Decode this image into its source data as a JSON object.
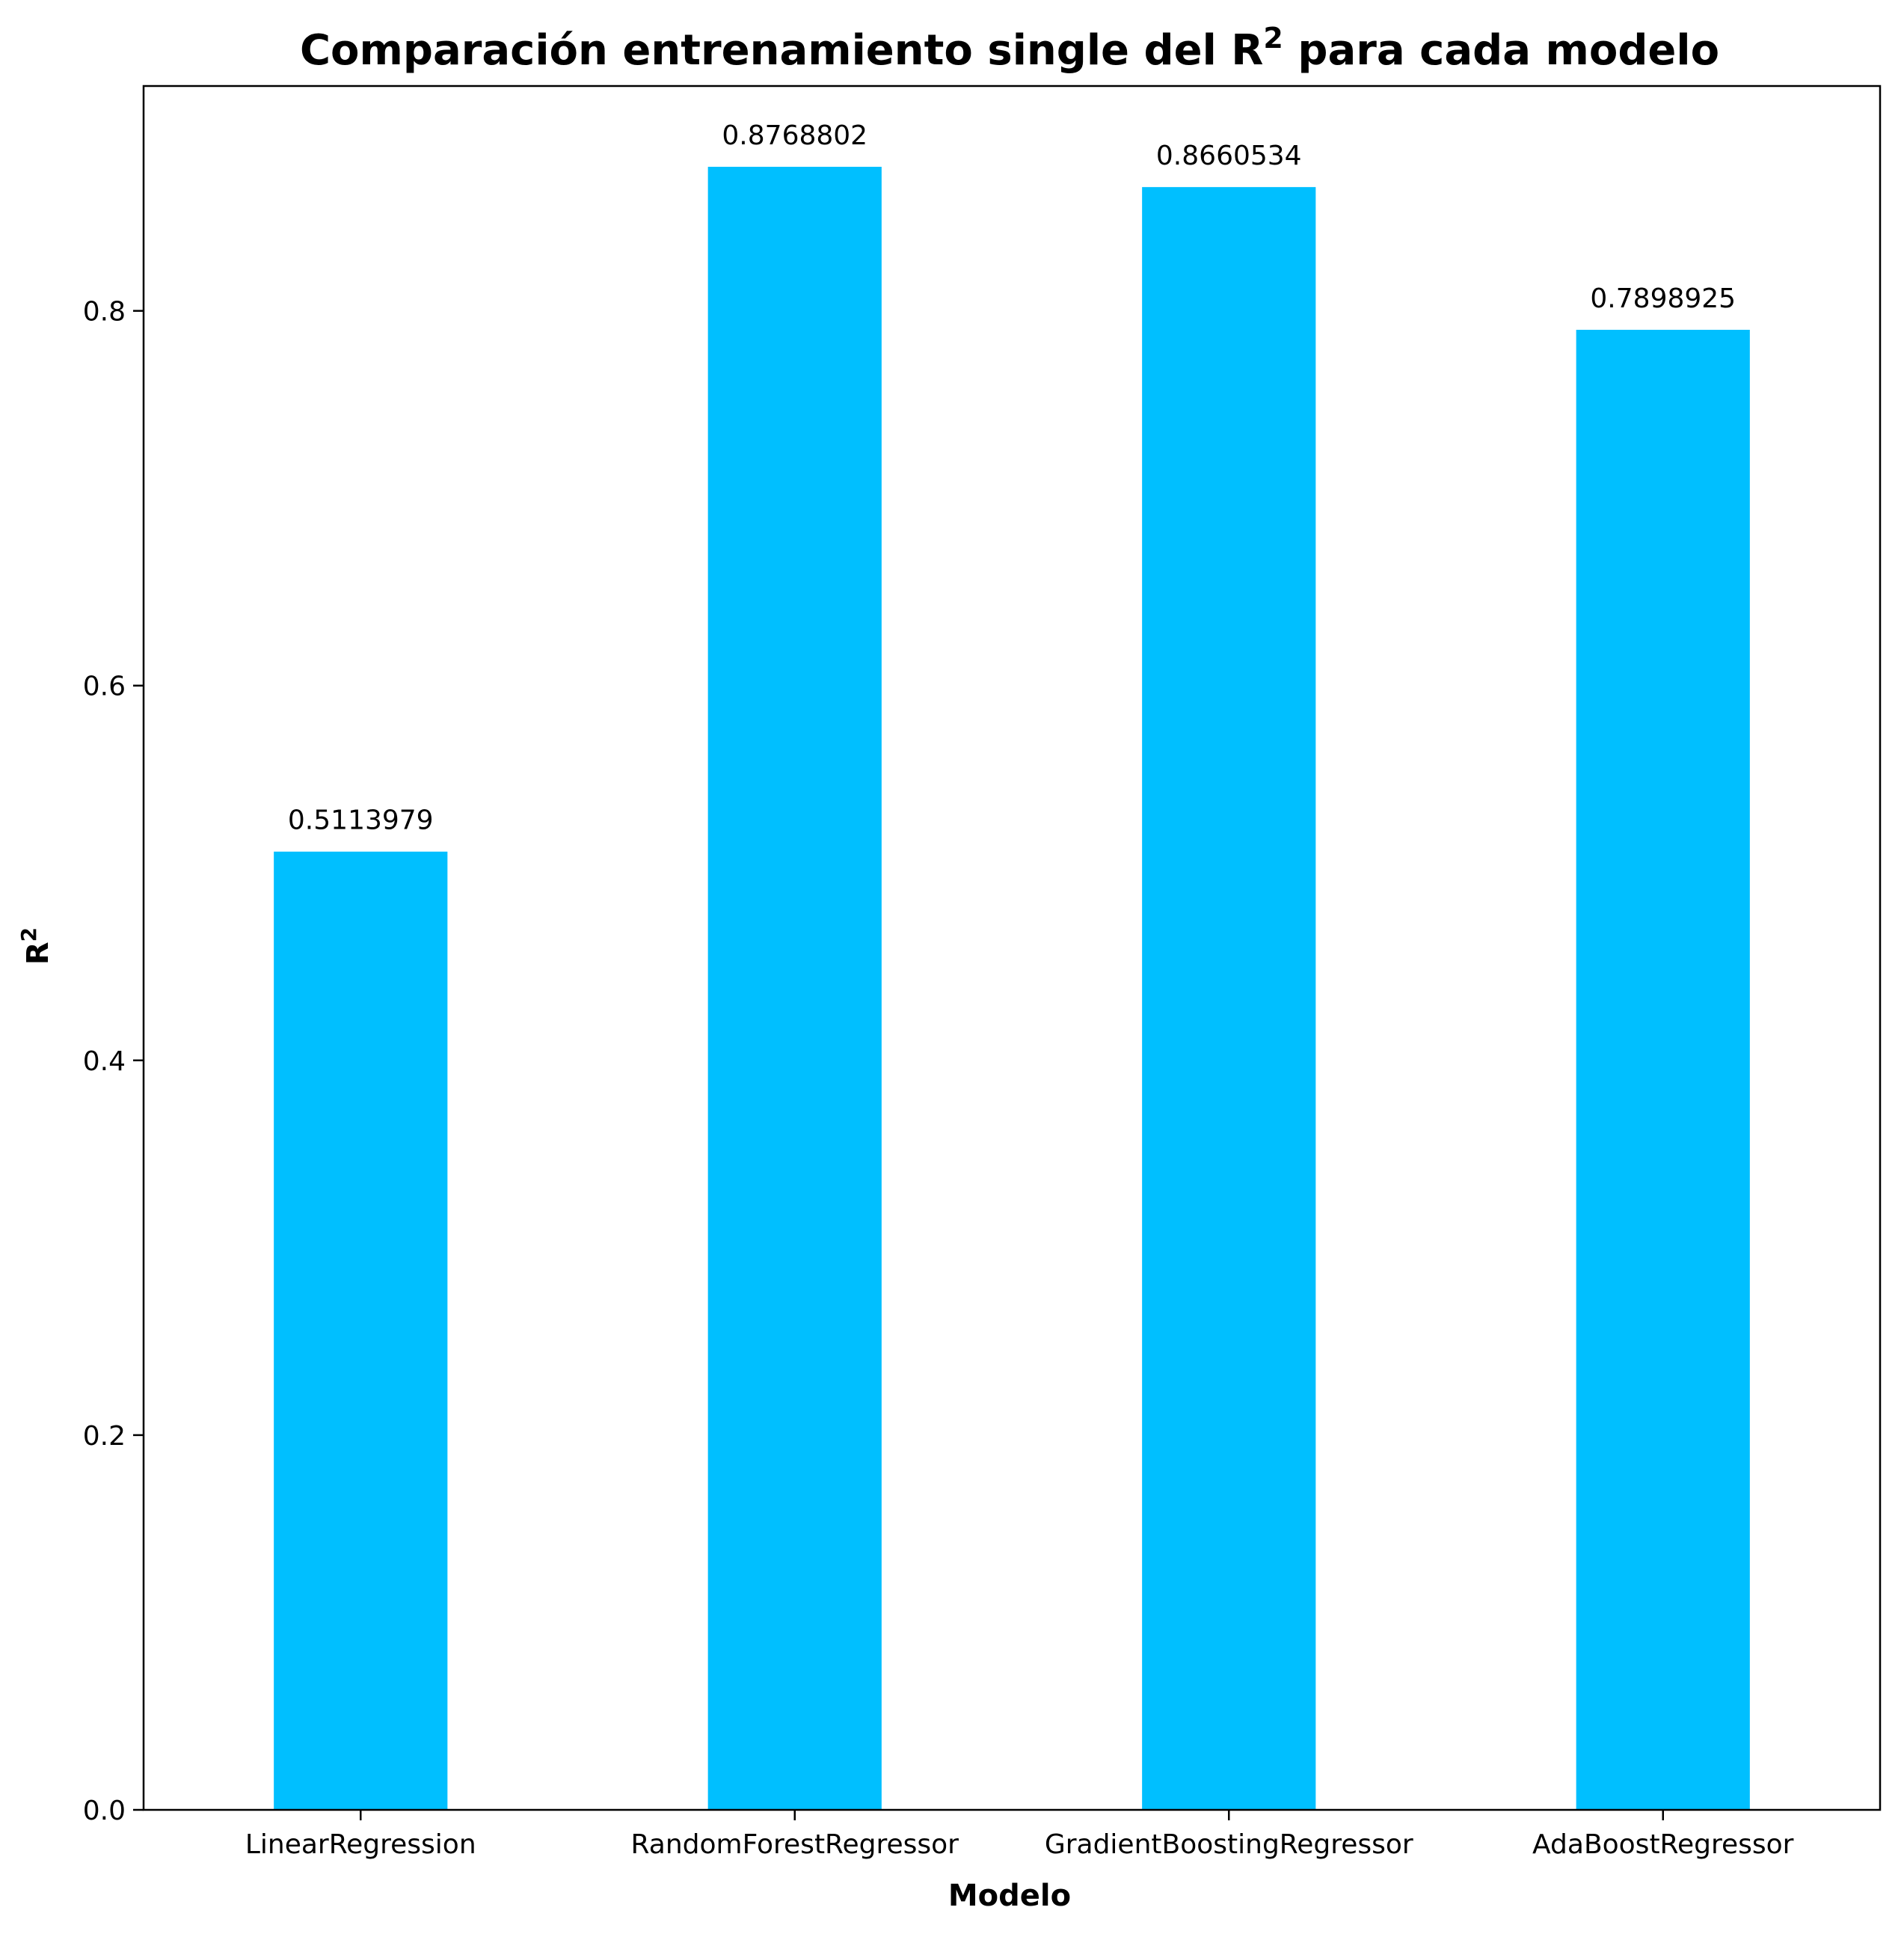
{
  "chart_data": {
    "type": "bar",
    "title": {
      "main": "Comparación entrenamiento single del R",
      "superscript": "2",
      "suffix": " para cada modelo"
    },
    "xlabel": "Modelo",
    "ylabel": {
      "main": "R",
      "superscript": "2"
    },
    "categories": [
      "LinearRegression",
      "RandomForestRegressor",
      "GradientBoostingRegressor",
      "AdaBoostRegressor"
    ],
    "values": [
      0.5113979,
      0.8768802,
      0.8660534,
      0.7898925
    ],
    "value_labels": [
      "0.5113979",
      "0.8768802",
      "0.8660534",
      "0.7898925"
    ],
    "ylim": [
      0,
      0.92
    ],
    "yticks": [
      0.0,
      0.2,
      0.4,
      0.6,
      0.8
    ],
    "ytick_labels": [
      "0.0",
      "0.2",
      "0.4",
      "0.6",
      "0.8"
    ],
    "bar_color": "#00BFFF",
    "grid": false
  }
}
